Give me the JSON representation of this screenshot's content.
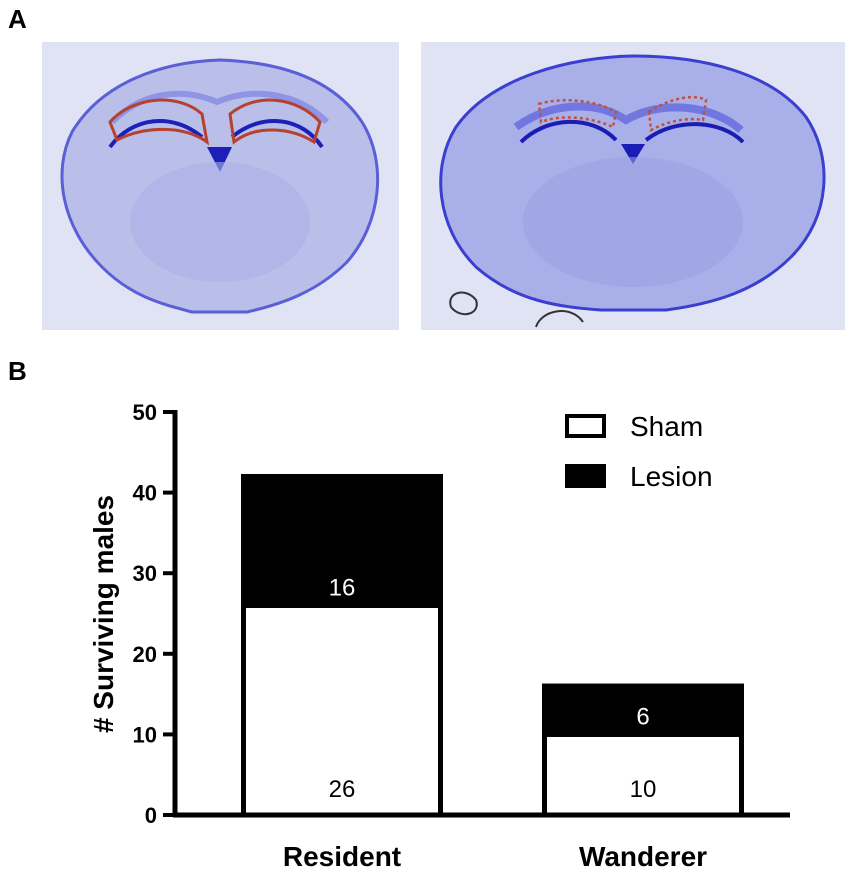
{
  "panels": {
    "a_label": "A",
    "b_label": "B"
  },
  "images": {
    "left": {
      "icon": "brain-section-sham-image"
    },
    "right": {
      "icon": "brain-section-lesion-image"
    }
  },
  "colors": {
    "sham": "#ffffff",
    "lesion": "#000000",
    "stain": "#3b3fd6",
    "outline": "#b5412f"
  },
  "chart_data": {
    "type": "bar",
    "stacked": true,
    "categories": [
      "Resident",
      "Wanderer"
    ],
    "series": [
      {
        "name": "Sham",
        "values": [
          26,
          10
        ],
        "labels": [
          "26",
          "10"
        ]
      },
      {
        "name": "Lesion",
        "values": [
          16,
          6
        ],
        "labels": [
          "16",
          "6"
        ]
      }
    ],
    "ylabel": "# Surviving males",
    "xlabel": "",
    "ylim": [
      0,
      50
    ],
    "yticks": [
      0,
      10,
      20,
      30,
      40,
      50
    ],
    "grid": false,
    "legend": "top-right"
  }
}
